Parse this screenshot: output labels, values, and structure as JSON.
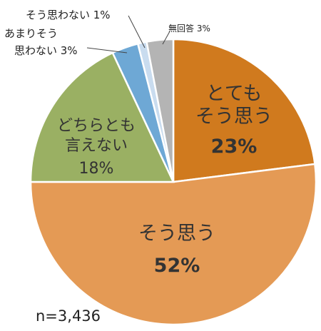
{
  "chart_data": {
    "type": "pie",
    "title": "",
    "sample_size": "n=3,436",
    "slices": [
      {
        "key": "very",
        "label_lines": [
          "とても",
          "そう思う"
        ],
        "value_text": "23%",
        "value": 23,
        "color": "#d07a1e"
      },
      {
        "key": "yes",
        "label_lines": [
          "そう思う"
        ],
        "value_text": "52%",
        "value": 52,
        "color": "#e49a55"
      },
      {
        "key": "neutral",
        "label_lines": [
          "どちらとも",
          "言えない"
        ],
        "value_text": "18%",
        "value": 18,
        "color": "#9ab063"
      },
      {
        "key": "notmuch",
        "label_lines": [
          "あまりそう",
          "思わない 3%"
        ],
        "value_text": "3%",
        "value": 3,
        "color": "#6ea8d5"
      },
      {
        "key": "no",
        "label_lines": [
          "そう思わない 1%"
        ],
        "value_text": "1%",
        "value": 1,
        "color": "#c9dcef"
      },
      {
        "key": "na",
        "label_lines": [
          "無回答 3%"
        ],
        "value_text": "3%",
        "value": 3,
        "color": "#b4b4b4"
      }
    ]
  }
}
